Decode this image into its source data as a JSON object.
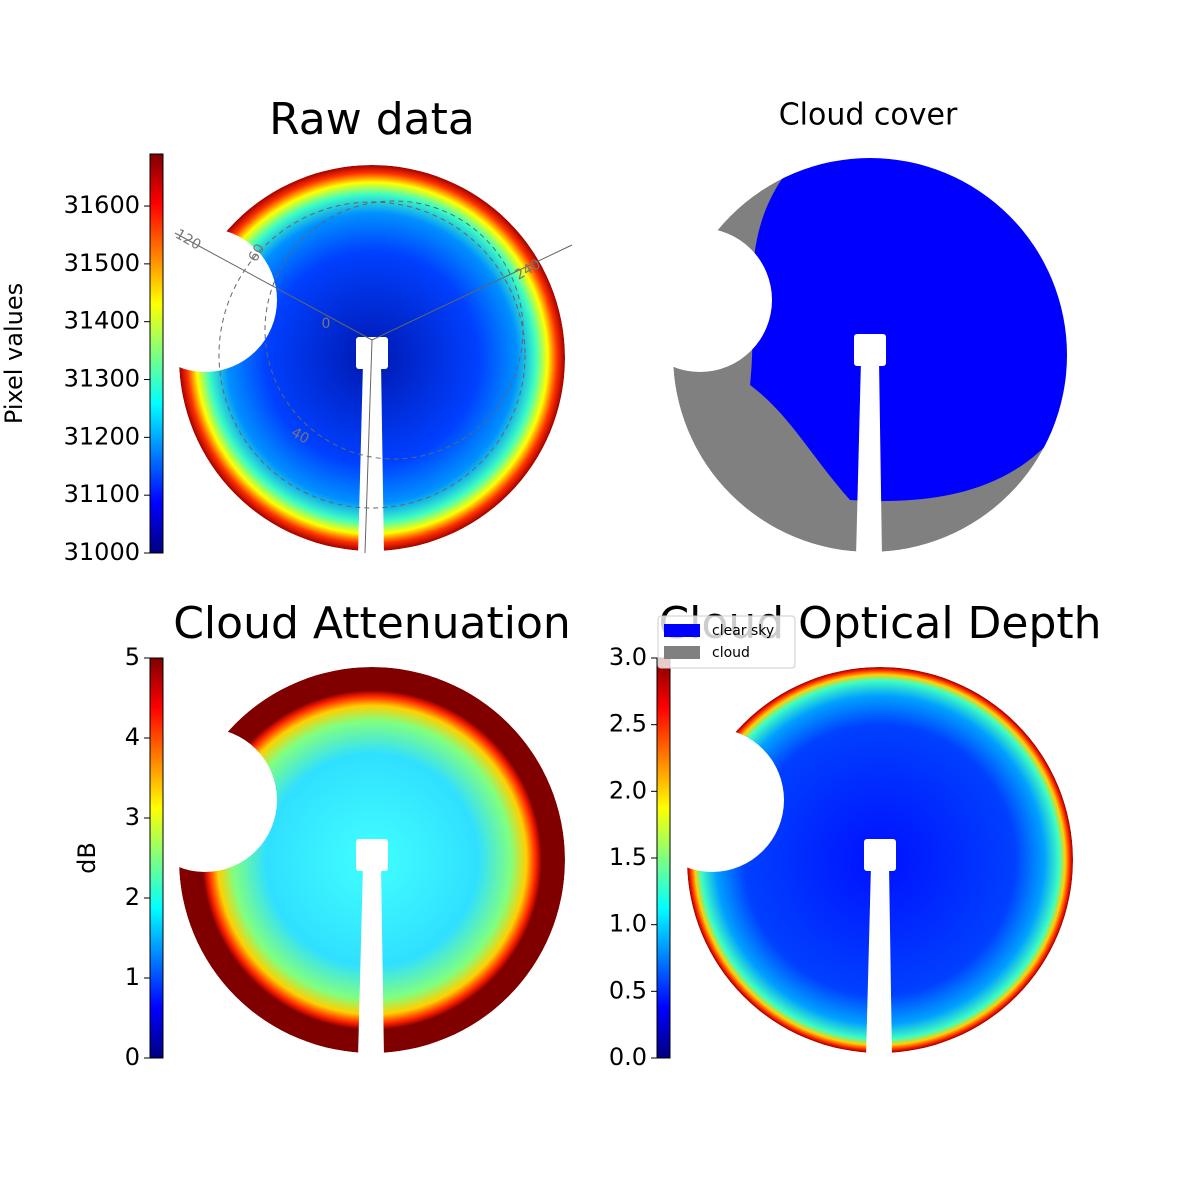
{
  "chart_data": [
    {
      "type": "image",
      "title": "Raw data",
      "colorbar_label": "Pixel values",
      "colormap": "jet",
      "ylim": [
        31000,
        31690
      ],
      "yticks": [
        31000,
        31100,
        31200,
        31300,
        31400,
        31500,
        31600
      ],
      "annotations": [
        "120",
        "60",
        "240",
        "0",
        "40"
      ]
    },
    {
      "type": "image",
      "title": "Cloud cover",
      "legend": [
        {
          "name": "clear sky",
          "color": "#0000ff"
        },
        {
          "name": "cloud",
          "color": "#808080"
        }
      ]
    },
    {
      "type": "image",
      "title": "Cloud Attenuation",
      "colorbar_label": "dB",
      "colormap": "jet",
      "ylim": [
        0,
        5
      ],
      "yticks": [
        0,
        1,
        2,
        3,
        4,
        5
      ]
    },
    {
      "type": "image",
      "title": "Cloud Optical Depth",
      "colormap": "jet",
      "ylim": [
        0,
        3
      ],
      "yticks": [
        {
          "value": 0,
          "label": "0.0"
        },
        {
          "value": 0.5,
          "label": "0.5"
        },
        {
          "value": 1,
          "label": "1.0"
        },
        {
          "value": 1.5,
          "label": "1.5"
        },
        {
          "value": 2,
          "label": "2.0"
        },
        {
          "value": 2.5,
          "label": "2.5"
        },
        {
          "value": 3,
          "label": "3.0"
        }
      ]
    }
  ]
}
